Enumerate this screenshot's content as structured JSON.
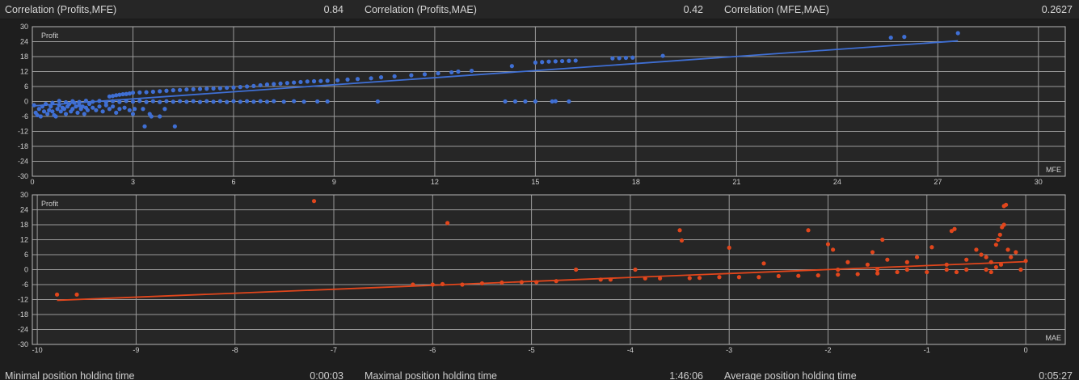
{
  "stats_top": [
    {
      "label": "Correlation (Profits,MFE)",
      "value": "0.84"
    },
    {
      "label": "Correlation (Profits,MAE)",
      "value": "0.42"
    },
    {
      "label": "Correlation (MFE,MAE)",
      "value": "0.2627"
    }
  ],
  "stats_bottom": [
    {
      "label": "Minimal position holding time",
      "value": "0:00:03"
    },
    {
      "label": "Maximal position holding time",
      "value": "1:46:06"
    },
    {
      "label": "Average position holding time",
      "value": "0:05:27"
    }
  ],
  "chart_data": [
    {
      "type": "scatter",
      "name": "mfe-chart",
      "title": "",
      "ylabel": "Profit",
      "xlabel": "MFE",
      "xlim": [
        0,
        30.8
      ],
      "ylim": [
        -30,
        30
      ],
      "xticks": [
        0,
        3,
        6,
        9,
        12,
        15,
        18,
        21,
        24,
        27,
        30
      ],
      "yticks": [
        30,
        24,
        18,
        12,
        6,
        0,
        -6,
        -12,
        -18,
        -24,
        -30
      ],
      "grid": true,
      "color": "#3f6fd4",
      "points": [
        [
          0.05,
          -1.5
        ],
        [
          0.1,
          -4.5
        ],
        [
          0.15,
          -5.5
        ],
        [
          0.2,
          -3
        ],
        [
          0.25,
          -6
        ],
        [
          0.3,
          -2
        ],
        [
          0.35,
          -4
        ],
        [
          0.4,
          -1
        ],
        [
          0.45,
          -5
        ],
        [
          0.5,
          -3.5
        ],
        [
          0.55,
          -2
        ],
        [
          0.6,
          -4
        ],
        [
          0.65,
          -5.5
        ],
        [
          0.7,
          -6
        ],
        [
          0.75,
          -3
        ],
        [
          0.8,
          -1.5
        ],
        [
          0.85,
          -4
        ],
        [
          0.9,
          -2.5
        ],
        [
          0.95,
          -3
        ],
        [
          1.0,
          -5
        ],
        [
          1.05,
          -2
        ],
        [
          1.1,
          -1
        ],
        [
          1.15,
          -4
        ],
        [
          1.2,
          -3
        ],
        [
          1.25,
          -0.5
        ],
        [
          1.3,
          -2
        ],
        [
          1.35,
          -4.5
        ],
        [
          1.4,
          -1.5
        ],
        [
          1.45,
          -3
        ],
        [
          1.5,
          -2
        ],
        [
          1.55,
          -5
        ],
        [
          1.6,
          -2.5
        ],
        [
          1.65,
          -3.5
        ],
        [
          1.7,
          -1
        ],
        [
          1.8,
          -2.5
        ],
        [
          1.9,
          -3.5
        ],
        [
          2.0,
          -2
        ],
        [
          2.1,
          -4
        ],
        [
          2.2,
          -1.5
        ],
        [
          2.3,
          -3
        ],
        [
          2.4,
          -2
        ],
        [
          2.5,
          -4.5
        ],
        [
          2.6,
          -3
        ],
        [
          2.75,
          -2.5
        ],
        [
          2.9,
          -3.5
        ],
        [
          3.0,
          -5
        ],
        [
          3.05,
          -3
        ],
        [
          3.3,
          -3
        ],
        [
          3.5,
          -5
        ],
        [
          3.55,
          -6
        ],
        [
          3.8,
          -6
        ],
        [
          3.95,
          -3
        ],
        [
          3.35,
          -10
        ],
        [
          4.25,
          -10
        ],
        [
          2.3,
          2
        ],
        [
          2.4,
          2.2
        ],
        [
          2.5,
          2.5
        ],
        [
          2.6,
          2.7
        ],
        [
          2.7,
          2.9
        ],
        [
          2.8,
          3
        ],
        [
          2.9,
          3.2
        ],
        [
          3.0,
          3.5
        ],
        [
          3.2,
          3.6
        ],
        [
          3.4,
          3.7
        ],
        [
          3.6,
          3.9
        ],
        [
          3.8,
          4.1
        ],
        [
          4.0,
          4.3
        ],
        [
          4.2,
          4.5
        ],
        [
          4.4,
          4.6
        ],
        [
          4.6,
          4.8
        ],
        [
          4.8,
          4.9
        ],
        [
          5.0,
          5
        ],
        [
          5.2,
          5.1
        ],
        [
          5.4,
          5.2
        ],
        [
          5.6,
          5.3
        ],
        [
          5.8,
          5.5
        ],
        [
          6.0,
          5.6
        ],
        [
          6.2,
          5.8
        ],
        [
          6.4,
          6
        ],
        [
          6.6,
          6.2
        ],
        [
          6.8,
          6.5
        ],
        [
          7.0,
          6.8
        ],
        [
          7.2,
          7
        ],
        [
          7.4,
          7.2
        ],
        [
          7.6,
          7.4
        ],
        [
          7.8,
          7.6
        ],
        [
          8.0,
          7.8
        ],
        [
          8.2,
          8
        ],
        [
          8.4,
          8.1
        ],
        [
          8.6,
          8.2
        ],
        [
          8.8,
          8.3
        ],
        [
          9.1,
          8.5
        ],
        [
          9.4,
          8.8
        ],
        [
          9.7,
          9
        ],
        [
          10.1,
          9.3
        ],
        [
          10.4,
          9.7
        ],
        [
          10.8,
          10.1
        ],
        [
          11.3,
          10.5
        ],
        [
          11.7,
          10.9
        ],
        [
          12.1,
          11.3
        ],
        [
          12.5,
          11.7
        ],
        [
          12.7,
          12
        ],
        [
          13.1,
          12.3
        ],
        [
          14.3,
          14.2
        ],
        [
          15.0,
          15.6
        ],
        [
          15.2,
          15.8
        ],
        [
          15.4,
          16
        ],
        [
          15.6,
          16.1
        ],
        [
          15.8,
          16.2
        ],
        [
          16.0,
          16.3
        ],
        [
          16.2,
          16.4
        ],
        [
          17.3,
          17.3
        ],
        [
          17.5,
          17.4
        ],
        [
          17.7,
          17.5
        ],
        [
          17.9,
          17.6
        ],
        [
          18.8,
          18.3
        ],
        [
          25.6,
          25.6
        ],
        [
          26.0,
          25.9
        ],
        [
          27.6,
          27.4
        ],
        [
          0.6,
          -0.5
        ],
        [
          0.8,
          0.2
        ],
        [
          1.0,
          -0.3
        ],
        [
          1.2,
          0.1
        ],
        [
          1.4,
          -0.2
        ],
        [
          1.6,
          0.3
        ],
        [
          1.8,
          -0.1
        ],
        [
          2.0,
          0.2
        ],
        [
          2.2,
          -0.3
        ],
        [
          2.4,
          0.1
        ],
        [
          2.6,
          -0.2
        ],
        [
          2.8,
          0.2
        ],
        [
          3.0,
          -0.1
        ],
        [
          3.2,
          0.2
        ],
        [
          3.4,
          -0.2
        ],
        [
          3.6,
          0.1
        ],
        [
          3.8,
          -0.2
        ],
        [
          4.0,
          0.1
        ],
        [
          4.2,
          -0.1
        ],
        [
          4.4,
          0.1
        ],
        [
          4.6,
          -0.1
        ],
        [
          4.8,
          0.1
        ],
        [
          5.0,
          -0.2
        ],
        [
          5.2,
          0.1
        ],
        [
          5.4,
          -0.1
        ],
        [
          5.6,
          0.1
        ],
        [
          5.8,
          -0.2
        ],
        [
          6.0,
          0.1
        ],
        [
          6.2,
          -0.1
        ],
        [
          6.4,
          0.1
        ],
        [
          6.6,
          -0.1
        ],
        [
          6.8,
          0.1
        ],
        [
          7.0,
          -0.1
        ],
        [
          7.2,
          0.1
        ],
        [
          7.5,
          -0.1
        ],
        [
          7.8,
          0.1
        ],
        [
          8.1,
          -0.1
        ],
        [
          8.5,
          0
        ],
        [
          8.8,
          0
        ],
        [
          10.3,
          0
        ],
        [
          14.1,
          0
        ],
        [
          14.4,
          0
        ],
        [
          14.7,
          0
        ],
        [
          15.0,
          0
        ],
        [
          15.5,
          0
        ],
        [
          15.6,
          0.1
        ],
        [
          16.0,
          0
        ]
      ],
      "trendline": [
        [
          0,
          -1.8
        ],
        [
          27.6,
          24.3
        ]
      ]
    },
    {
      "type": "scatter",
      "name": "mae-chart",
      "title": "",
      "ylabel": "Profit",
      "xlabel": "MAE",
      "xlim": [
        -10.05,
        0.4
      ],
      "ylim": [
        -30,
        30
      ],
      "xticks": [
        -10,
        -9,
        -8,
        -7,
        -6,
        -5,
        -4,
        -3,
        -2,
        -1,
        0
      ],
      "yticks": [
        30,
        24,
        18,
        12,
        6,
        0,
        -6,
        -12,
        -18,
        -24,
        -30
      ],
      "grid": true,
      "color": "#e1461c",
      "points": [
        [
          -9.8,
          -10
        ],
        [
          -9.6,
          -10
        ],
        [
          -7.2,
          27.5
        ],
        [
          -6.2,
          -6
        ],
        [
          -6.0,
          -6
        ],
        [
          -5.9,
          -5.8
        ],
        [
          -5.85,
          18.7
        ],
        [
          -5.7,
          -6
        ],
        [
          -5.5,
          -5.5
        ],
        [
          -5.3,
          -5.2
        ],
        [
          -5.1,
          -5
        ],
        [
          -4.95,
          -5
        ],
        [
          -4.75,
          -4.6
        ],
        [
          -4.55,
          0
        ],
        [
          -4.3,
          -4
        ],
        [
          -4.2,
          -4
        ],
        [
          -3.95,
          0
        ],
        [
          -3.85,
          -3.5
        ],
        [
          -3.7,
          -3.5
        ],
        [
          -3.5,
          15.8
        ],
        [
          -3.48,
          11.7
        ],
        [
          -3.4,
          -3.4
        ],
        [
          -3.3,
          -3.3
        ],
        [
          -3.1,
          -3
        ],
        [
          -3.0,
          8.8
        ],
        [
          -2.9,
          -3
        ],
        [
          -2.7,
          -3
        ],
        [
          -2.65,
          2.5
        ],
        [
          -2.5,
          -2.6
        ],
        [
          -2.3,
          -2.5
        ],
        [
          -2.2,
          15.8
        ],
        [
          -2.1,
          -2.3
        ],
        [
          -2.0,
          10.2
        ],
        [
          -1.95,
          8
        ],
        [
          -1.9,
          -2
        ],
        [
          -1.8,
          3
        ],
        [
          -1.7,
          -1.8
        ],
        [
          -1.6,
          2
        ],
        [
          -1.55,
          7
        ],
        [
          -1.5,
          -1.5
        ],
        [
          -1.45,
          12
        ],
        [
          -1.4,
          4
        ],
        [
          -1.3,
          -1
        ],
        [
          -1.2,
          3
        ],
        [
          -1.1,
          5
        ],
        [
          -1.0,
          -1
        ],
        [
          -0.95,
          9
        ],
        [
          -0.8,
          2
        ],
        [
          -0.75,
          15.5
        ],
        [
          -0.72,
          16.3
        ],
        [
          -0.7,
          -1
        ],
        [
          -0.6,
          4
        ],
        [
          -0.5,
          8
        ],
        [
          -0.45,
          6
        ],
        [
          -0.4,
          5
        ],
        [
          -0.35,
          3
        ],
        [
          -0.3,
          10
        ],
        [
          -0.28,
          12
        ],
        [
          -0.26,
          14
        ],
        [
          -0.24,
          17
        ],
        [
          -0.22,
          18
        ],
        [
          -0.22,
          25.5
        ],
        [
          -0.2,
          26
        ],
        [
          -0.18,
          8
        ],
        [
          -0.15,
          5
        ],
        [
          -0.1,
          7
        ],
        [
          -0.05,
          0
        ],
        [
          0.0,
          3.5
        ],
        [
          -1.9,
          0
        ],
        [
          -1.5,
          0
        ],
        [
          -1.2,
          0
        ],
        [
          -0.8,
          0
        ],
        [
          -0.6,
          0
        ],
        [
          -0.4,
          0
        ],
        [
          -0.3,
          1
        ],
        [
          -0.25,
          2
        ],
        [
          -0.35,
          -1
        ]
      ],
      "trendline": [
        [
          -9.8,
          -12.3
        ],
        [
          0.0,
          3.2
        ]
      ]
    }
  ]
}
